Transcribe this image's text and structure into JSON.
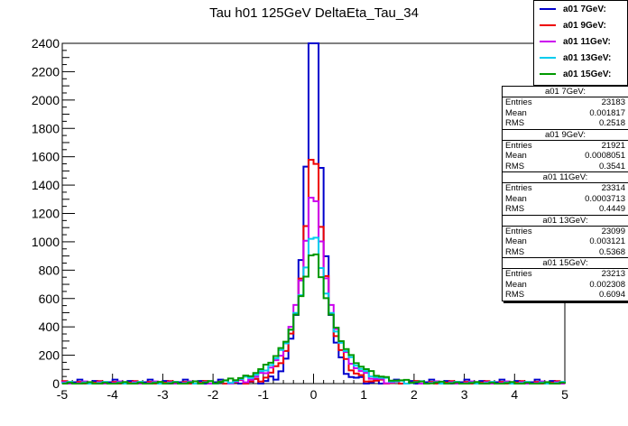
{
  "chart_data": {
    "type": "histogram",
    "title": "Tau h01 125GeV DeltaEta_Tau_34",
    "xlabel": "",
    "ylabel": "",
    "xlim": [
      -5,
      5
    ],
    "ylim": [
      0,
      2400
    ],
    "xticks": [
      "-5",
      "-4",
      "-3",
      "-2",
      "-1",
      "0",
      "1",
      "2",
      "3",
      "4",
      "5"
    ],
    "yticks": [
      "0",
      "200",
      "400",
      "600",
      "800",
      "1000",
      "1200",
      "1400",
      "1600",
      "1800",
      "2000",
      "2200",
      "2400"
    ],
    "legend_position": "top-right",
    "series": [
      {
        "name": "a01 7GeV:",
        "color": "#0000cc",
        "entries": "23183",
        "mean": "0.001817",
        "rms": "0.2518",
        "sigma": 0.2518,
        "peak": 2290,
        "dip": 0.12
      },
      {
        "name": "a01 9GeV:",
        "color": "#ee0000",
        "entries": "21921",
        "mean": "0.0008051",
        "rms": "0.3541",
        "sigma": 0.3541,
        "peak": 1480,
        "dip": 0.1
      },
      {
        "name": "a01 11GeV:",
        "color": "#cc00ee",
        "entries": "23314",
        "mean": "0.0003713",
        "rms": "0.4449",
        "sigma": 0.4449,
        "peak": 1260,
        "dip": 0.12
      },
      {
        "name": "a01 13GeV:",
        "color": "#00ccee",
        "entries": "23099",
        "mean": "0.003121",
        "rms": "0.5368",
        "sigma": 0.5368,
        "peak": 990,
        "dip": 0.1
      },
      {
        "name": "a01 15GeV:",
        "color": "#009900",
        "entries": "23213",
        "mean": "0.002308",
        "rms": "0.6094",
        "sigma": 0.6094,
        "peak": 890,
        "dip": 0.12
      }
    ]
  },
  "stats_labels": {
    "entries": "Entries",
    "mean": "Mean",
    "rms": "RMS"
  }
}
